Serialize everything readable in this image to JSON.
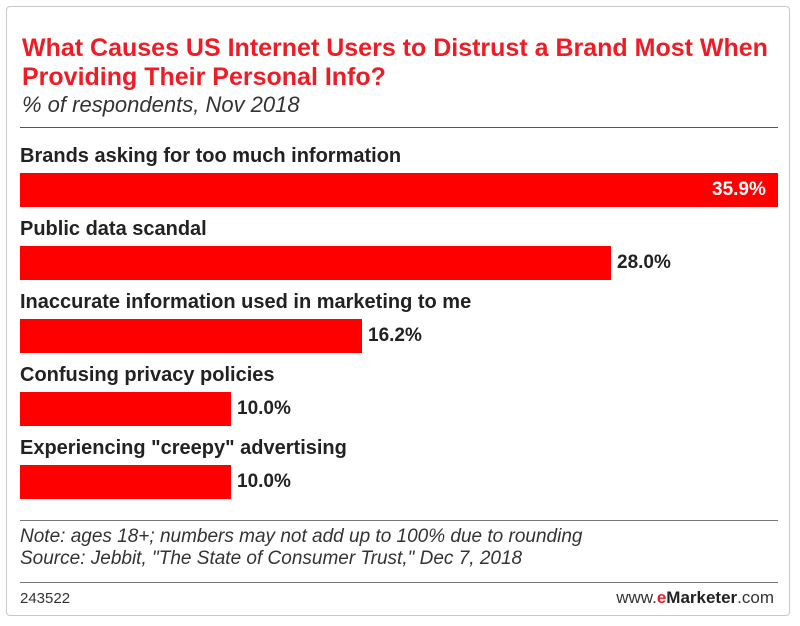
{
  "chart_data": {
    "type": "bar",
    "orientation": "horizontal",
    "title": "What Causes US Internet Users to Distrust a Brand Most When Providing Their Personal Info?",
    "subtitle": "% of respondents, Nov 2018",
    "categories": [
      "Brands asking for too much information",
      "Public data scandal",
      "Inaccurate information used in marketing to me",
      "Confusing privacy policies",
      "Experiencing \"creepy\" advertising"
    ],
    "values": [
      35.9,
      28.0,
      16.2,
      10.0,
      10.0
    ],
    "value_labels": [
      "35.9%",
      "28.0%",
      "16.2%",
      "10.0%",
      "10.0%"
    ],
    "xlim": [
      0,
      35.9
    ],
    "grid": false,
    "bar_color": "#ff0000",
    "title_color": "#ee1c25"
  },
  "note": "Note: ages 18+; numbers may not add up to 100% due to rounding",
  "source": "Source: Jebbit, \"The State of Consumer Trust,\" Dec 7, 2018",
  "chart_id": "243522",
  "brand": {
    "prefix": "www.",
    "e": "e",
    "name": "Marketer",
    "suffix": ".com"
  }
}
